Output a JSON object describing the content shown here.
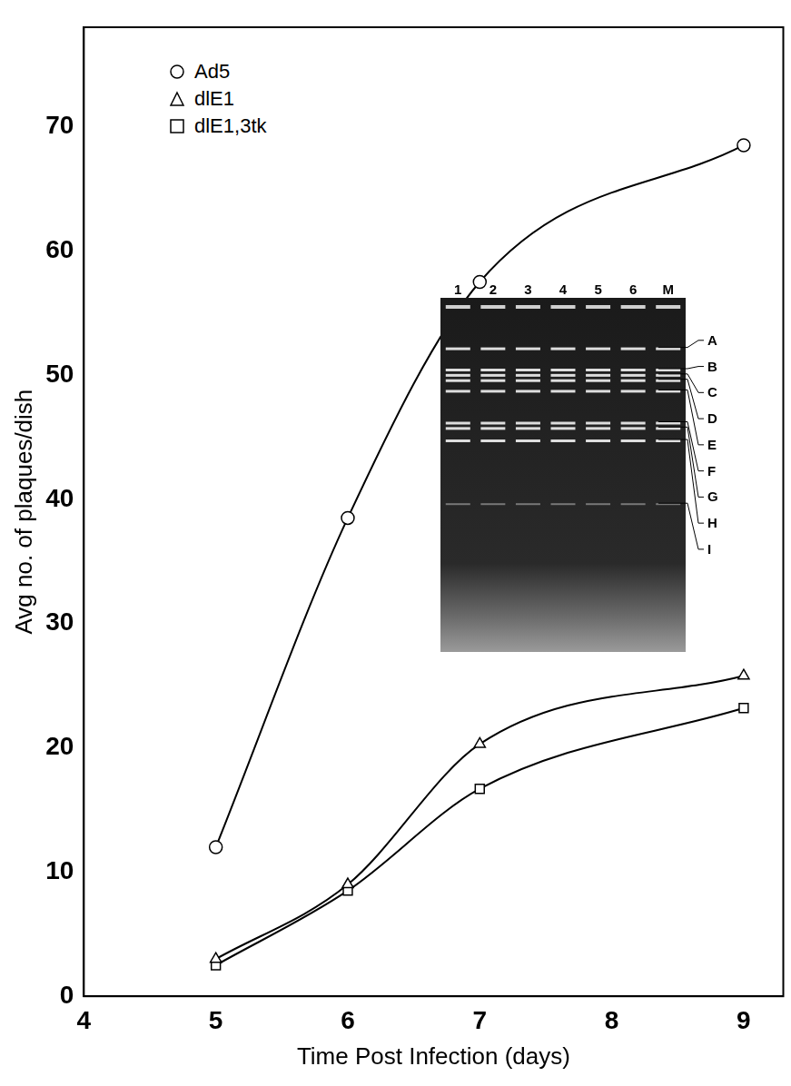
{
  "chart_data": {
    "type": "line",
    "x_label": "Time Post Infection (days)",
    "y_label": "Avg no. of plaques/dish",
    "x": [
      5,
      6,
      7,
      9
    ],
    "series": [
      {
        "name": "Ad5",
        "color": "#000000",
        "marker": "circle",
        "values": [
          12,
          38.5,
          57.5,
          68.5
        ]
      },
      {
        "name": "dlE1",
        "color": "#000000",
        "marker": "triangle",
        "values": [
          3,
          9,
          20.3,
          25.8
        ]
      },
      {
        "name": "dlE1,3tk",
        "color": "#000000",
        "marker": "square",
        "values": [
          2.5,
          8.5,
          16.7,
          23.2
        ]
      }
    ],
    "xlim": [
      4,
      9.3
    ],
    "xticks": [
      4,
      5,
      6,
      7,
      8,
      9
    ],
    "ylim": [
      0,
      78
    ],
    "yticks": [
      0,
      10,
      20,
      30,
      40,
      50,
      60,
      70
    ],
    "grid": false,
    "legend": "upper left",
    "inset": {
      "lanes": [
        "1",
        "2",
        "3",
        "4",
        "5",
        "6",
        "M"
      ],
      "bands": [
        "A",
        "B",
        "C",
        "D",
        "E",
        "F",
        "G",
        "H",
        "I"
      ]
    }
  }
}
